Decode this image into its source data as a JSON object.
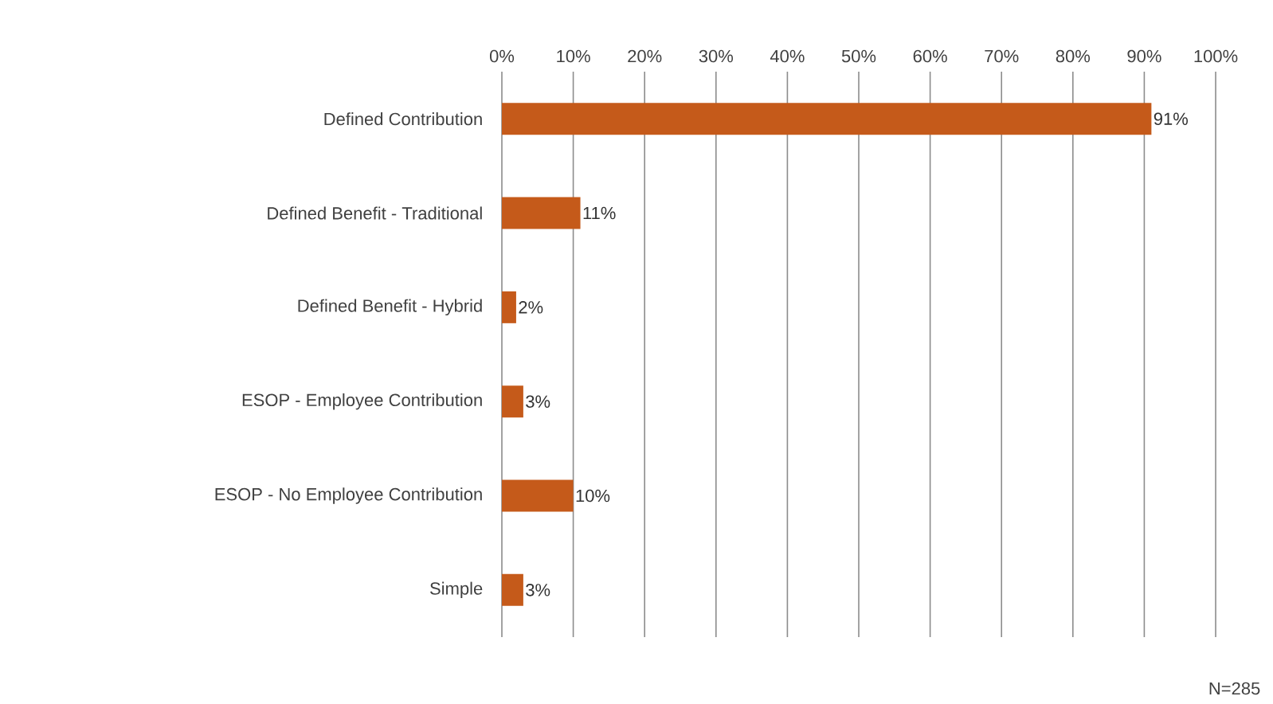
{
  "chart_data": {
    "type": "bar",
    "orientation": "horizontal",
    "categories": [
      "Defined Contribution",
      "Defined Benefit - Traditional",
      "Defined Benefit - Hybrid",
      "ESOP - Employee Contribution",
      "ESOP - No Employee Contribution",
      "Simple"
    ],
    "values": [
      91,
      11,
      2,
      3,
      10,
      3
    ],
    "value_labels": [
      "91%",
      "11%",
      "2%",
      "3%",
      "10%",
      "3%"
    ],
    "color": "#c55a1a",
    "xlim": [
      0,
      100
    ],
    "xticks": [
      {
        "value": 0,
        "label": "0%"
      },
      {
        "value": 10,
        "label": "10%"
      },
      {
        "value": 20,
        "label": "20%"
      },
      {
        "value": 30,
        "label": "30%"
      },
      {
        "value": 40,
        "label": "40%"
      },
      {
        "value": 50,
        "label": "50%"
      },
      {
        "value": 60,
        "label": "60%"
      },
      {
        "value": 70,
        "label": "70%"
      },
      {
        "value": 80,
        "label": "80%"
      },
      {
        "value": 90,
        "label": "90%"
      },
      {
        "value": 100,
        "label": "100%"
      }
    ],
    "grid": "x",
    "annotations": [
      "N=285"
    ]
  }
}
